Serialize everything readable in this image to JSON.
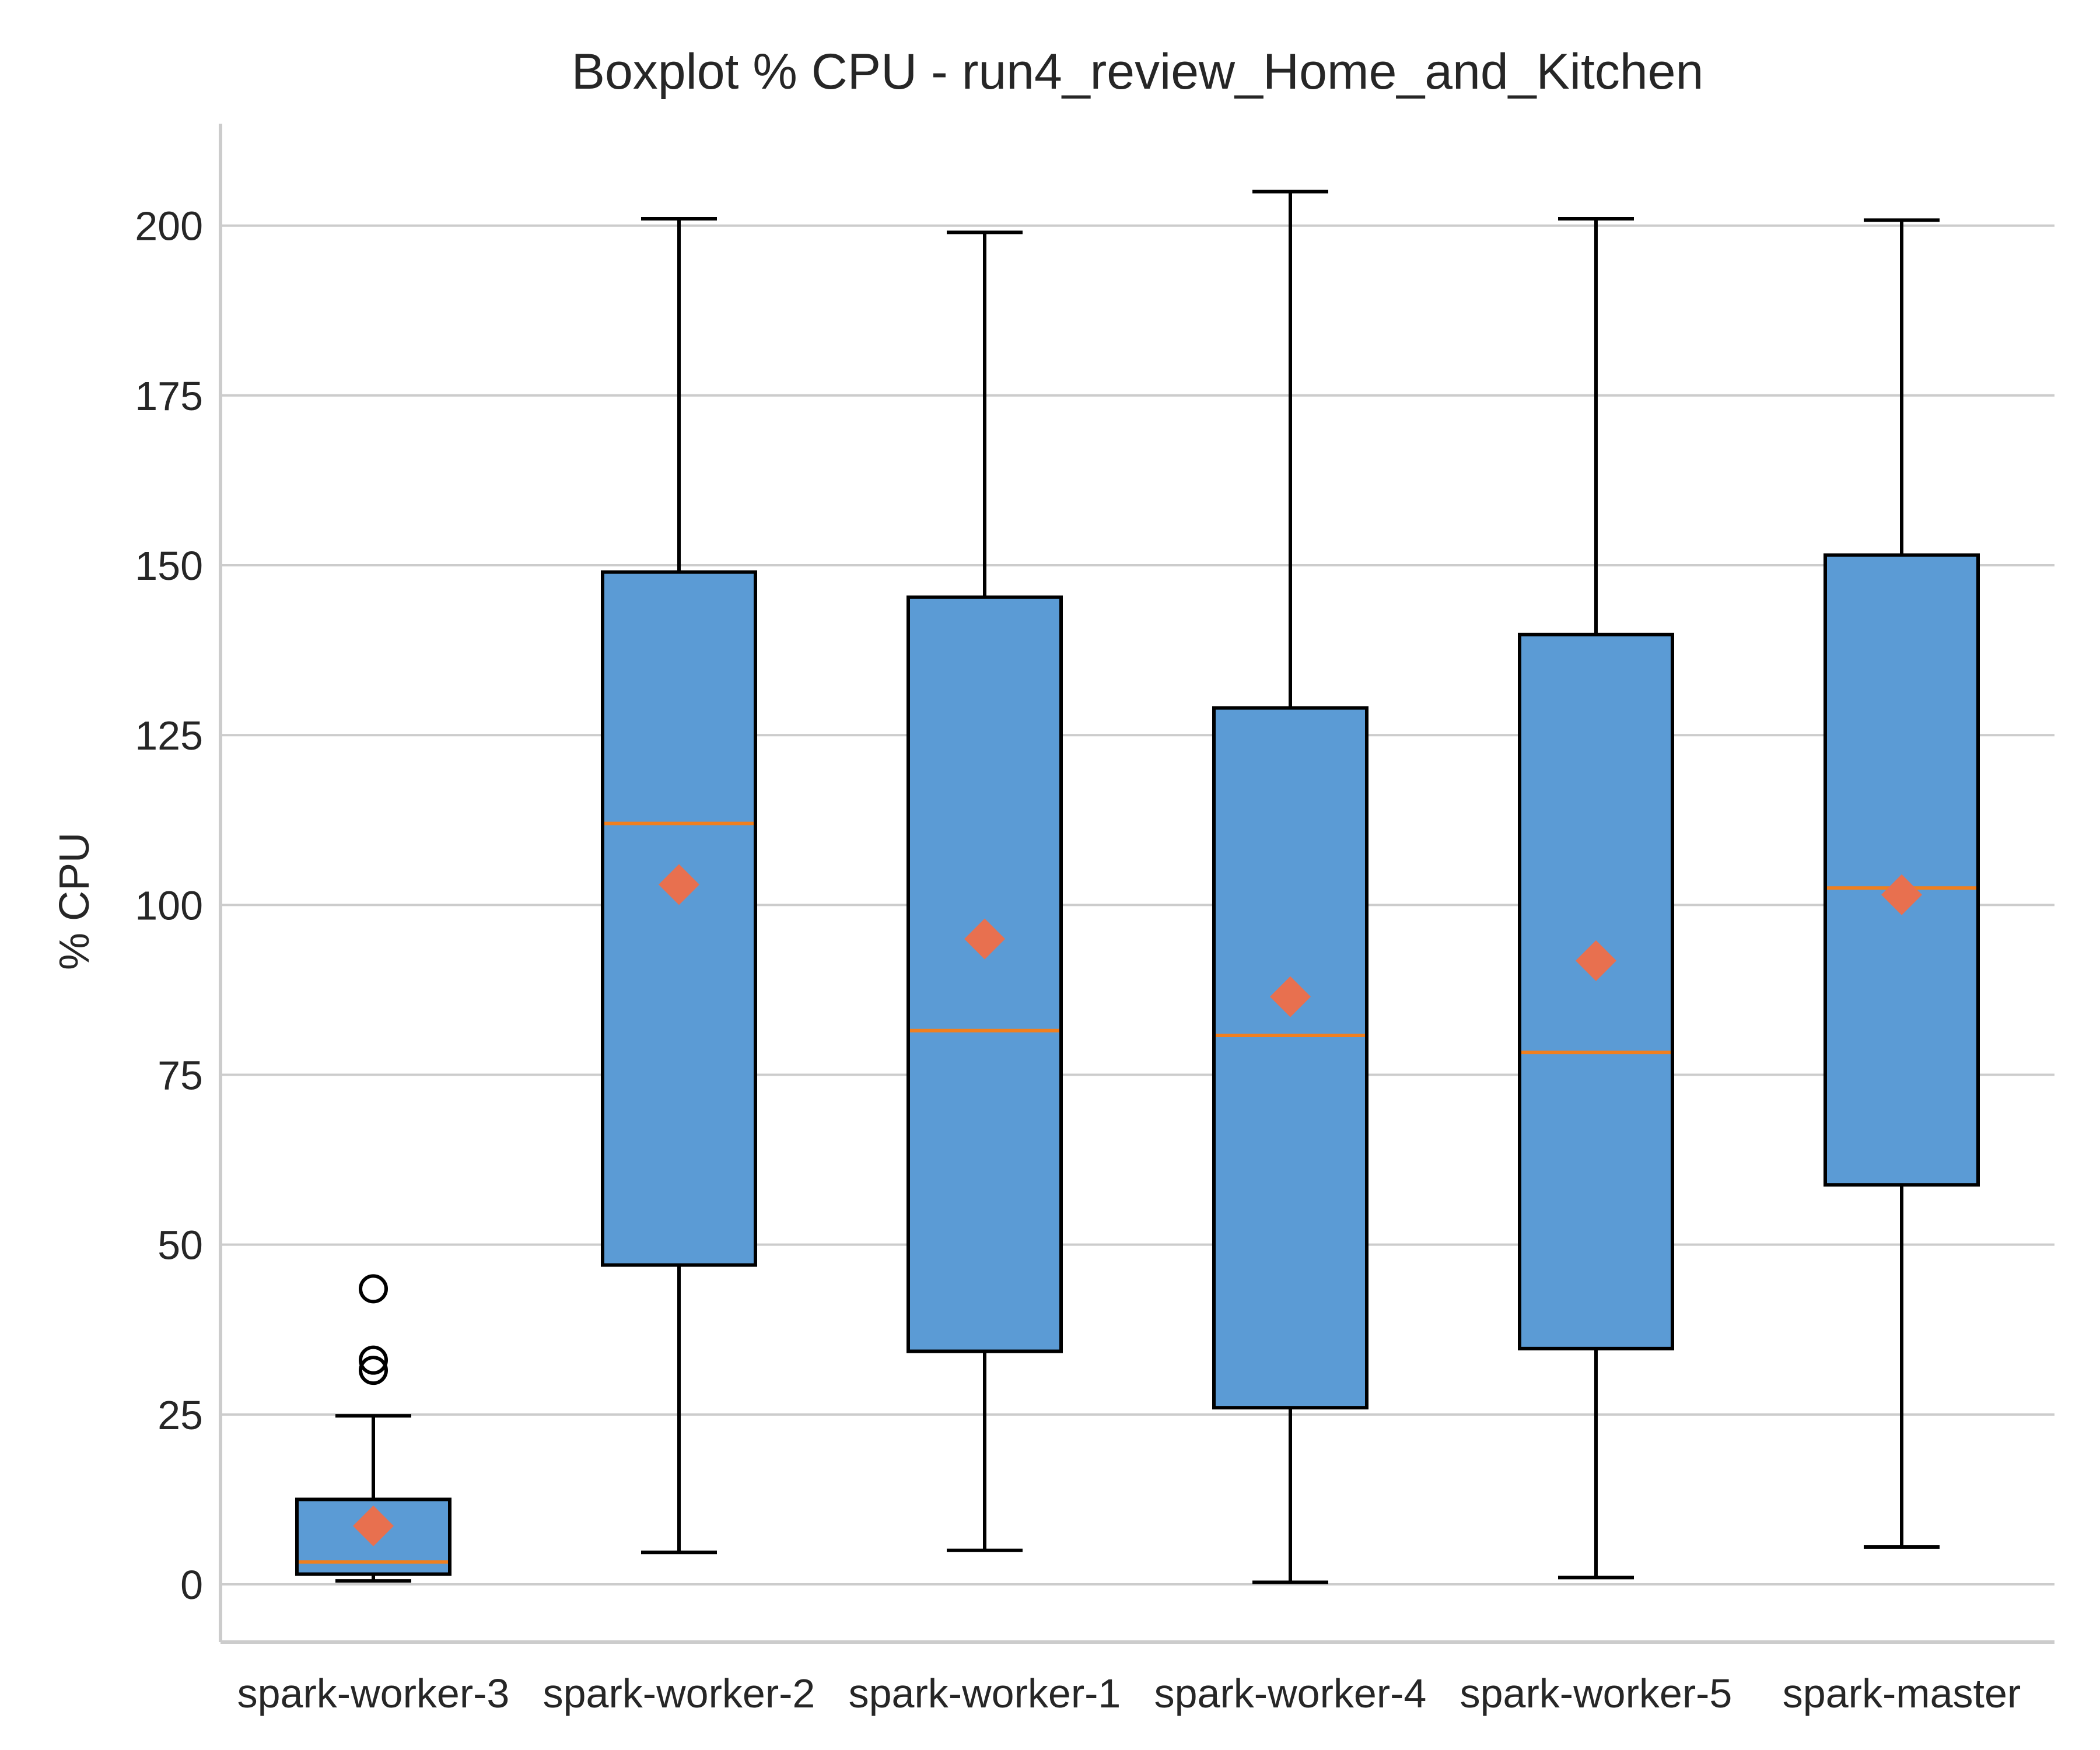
{
  "chart_data": {
    "type": "boxplot",
    "title": "Boxplot % CPU - run4_review_Home_and_Kitchen",
    "xlabel": "",
    "ylabel": "% CPU",
    "ylim": [
      -8.5,
      215
    ],
    "yticks": [
      0,
      25,
      50,
      75,
      100,
      125,
      150,
      175,
      200
    ],
    "grid": "y",
    "colors": {
      "box_fill": "#5b9bd5",
      "box_edge": "#000000",
      "median": "#f07f1f",
      "mean": "#e8704f",
      "grid": "#cccccc",
      "axis": "#cccccc"
    },
    "categories": [
      "spark-worker-3",
      "spark-worker-2",
      "spark-worker-1",
      "spark-worker-4",
      "spark-worker-5",
      "spark-master"
    ],
    "boxes": [
      {
        "whisker_low": 0.5,
        "q1": 1.5,
        "median": 3.3,
        "q3": 12.5,
        "whisker_high": 24.8,
        "mean": 8.6,
        "outliers": [
          31.5,
          33.0,
          43.5
        ]
      },
      {
        "whisker_low": 4.7,
        "q1": 47.0,
        "median": 112.0,
        "q3": 149.0,
        "whisker_high": 201.0,
        "mean": 103.0,
        "outliers": []
      },
      {
        "whisker_low": 5.0,
        "q1": 34.3,
        "median": 81.5,
        "q3": 145.3,
        "whisker_high": 199.0,
        "mean": 95.0,
        "outliers": []
      },
      {
        "whisker_low": 0.3,
        "q1": 26.0,
        "median": 80.8,
        "q3": 129.0,
        "whisker_high": 205.0,
        "mean": 86.5,
        "outliers": []
      },
      {
        "whisker_low": 1.0,
        "q1": 34.7,
        "median": 78.3,
        "q3": 139.8,
        "whisker_high": 201.0,
        "mean": 91.8,
        "outliers": []
      },
      {
        "whisker_low": 5.5,
        "q1": 58.8,
        "median": 102.5,
        "q3": 151.5,
        "whisker_high": 200.8,
        "mean": 101.5,
        "outliers": []
      }
    ]
  }
}
